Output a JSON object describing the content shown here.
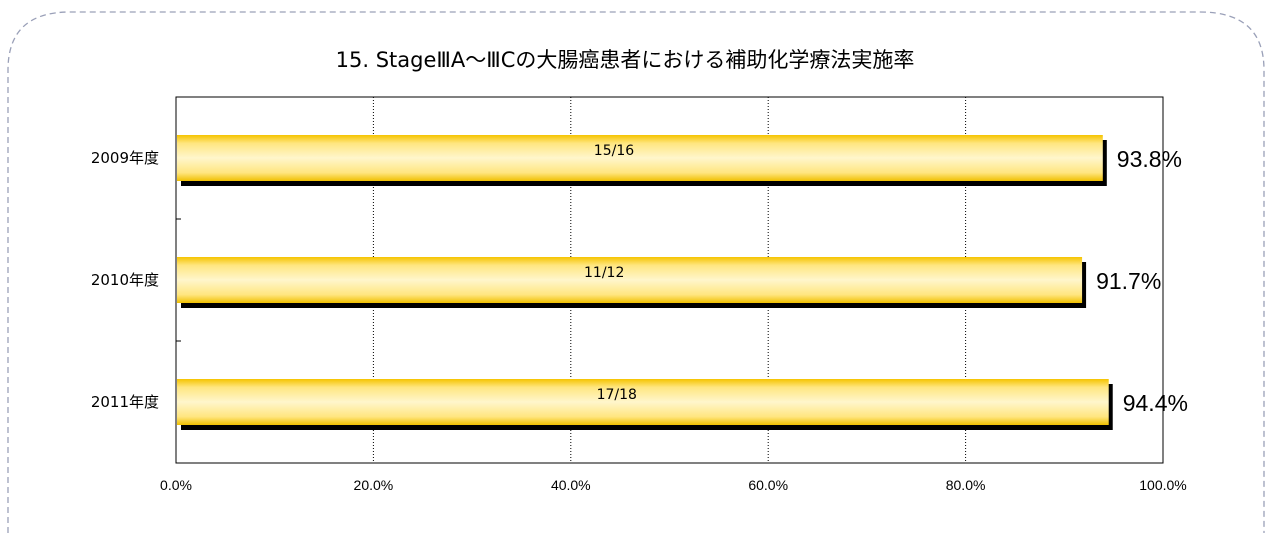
{
  "chart_data": {
    "type": "bar",
    "orientation": "horizontal",
    "title": "15. StageⅢA～ⅢCの大腸癌患者における補助化学療法実施率",
    "categories": [
      "2009年度",
      "2010年度",
      "2011年度"
    ],
    "values": [
      93.8,
      91.7,
      94.4
    ],
    "value_labels": [
      "93.8%",
      "91.7%",
      "94.4%"
    ],
    "bar_inner_labels": [
      "15/16",
      "11/12",
      "17/18"
    ],
    "xlim": [
      0,
      100
    ],
    "xticks": [
      0,
      20,
      40,
      60,
      80,
      100
    ],
    "xtick_labels": [
      "0.0%",
      "20.0%",
      "40.0%",
      "60.0%",
      "80.0%",
      "100.0%"
    ],
    "xlabel": "",
    "ylabel": "",
    "grid": "vertical-dotted",
    "legend": "none",
    "colors": {
      "bar_light": "#fff6cc",
      "bar_mid": "#ffe680",
      "bar_dark": "#f5c400",
      "shadow": "#000000",
      "frame_dashed": "#9aa0b8"
    }
  }
}
